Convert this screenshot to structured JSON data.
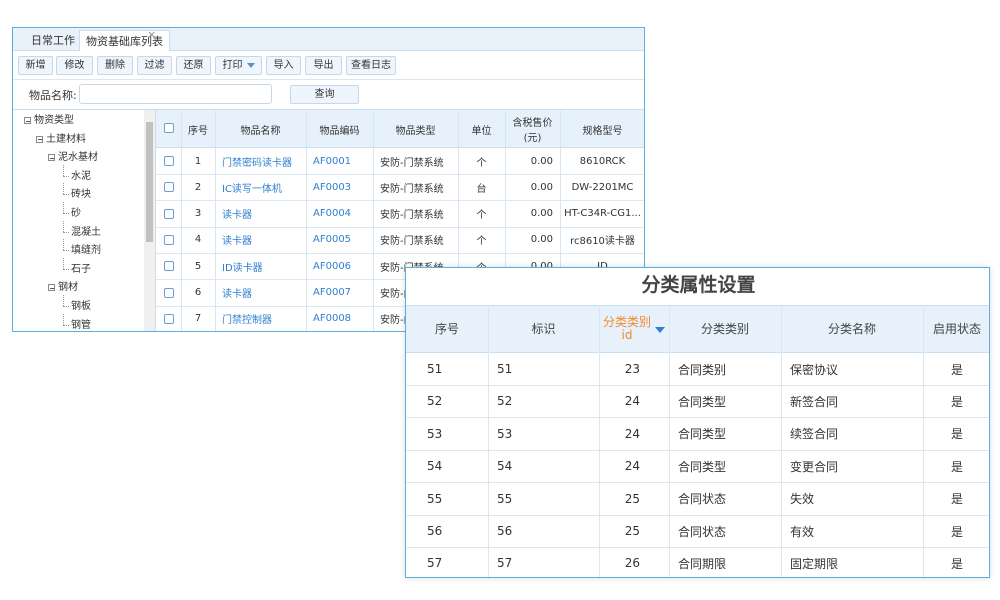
{
  "tabs": [
    "日常工作",
    "物资基础库列表"
  ],
  "tab_close": "×",
  "toolbar": [
    "新增",
    "修改",
    "删除",
    "过滤",
    "还原",
    "打印",
    "导入",
    "导出",
    "查看日志"
  ],
  "search": {
    "label": "物品名称:",
    "button": "查询"
  },
  "tree": [
    {
      "label": "物资类型",
      "children": [
        {
          "label": "土建材料",
          "children": [
            {
              "label": "泥水基材",
              "children": [
                {
                  "label": "水泥"
                },
                {
                  "label": "砖块"
                },
                {
                  "label": "砂"
                },
                {
                  "label": "混凝土"
                },
                {
                  "label": "填缝剂"
                },
                {
                  "label": "石子"
                }
              ]
            },
            {
              "label": "钢材",
              "children": [
                {
                  "label": "钢板"
                },
                {
                  "label": "钢管"
                }
              ]
            }
          ]
        }
      ]
    }
  ],
  "table": {
    "headers": [
      "序号",
      "物品名称",
      "物品编码",
      "物品类型",
      "单位",
      "含税售价(元)",
      "规格型号"
    ],
    "rows": [
      [
        "1",
        "门禁密码读卡器",
        "AF0001",
        "安防-门禁系统",
        "个",
        "0.00",
        "8610RCK"
      ],
      [
        "2",
        "IC读写一体机",
        "AF0003",
        "安防-门禁系统",
        "台",
        "0.00",
        "DW-2201MC"
      ],
      [
        "3",
        "读卡器",
        "AF0004",
        "安防-门禁系统",
        "个",
        "0.00",
        "HT-C34R-CG1..."
      ],
      [
        "4",
        "读卡器",
        "AF0005",
        "安防-门禁系统",
        "个",
        "0.00",
        "rc8610读卡器"
      ],
      [
        "5",
        "ID读卡器",
        "AF0006",
        "安防-门禁系统",
        "个",
        "0.00",
        "ID"
      ],
      [
        "6",
        "读卡器",
        "AF0007",
        "安防-门禁系统"
      ],
      [
        "7",
        "门禁控制器",
        "AF0008",
        "安防-门禁系统"
      ]
    ]
  },
  "dialog": {
    "title": "分类属性设置",
    "headers": [
      "序号",
      "标识",
      "分类类别id",
      "分类类别",
      "分类名称",
      "启用状态"
    ],
    "rows": [
      [
        "51",
        "51",
        "23",
        "合同类别",
        "保密协议",
        "是"
      ],
      [
        "52",
        "52",
        "24",
        "合同类型",
        "新签合同",
        "是"
      ],
      [
        "53",
        "53",
        "24",
        "合同类型",
        "续签合同",
        "是"
      ],
      [
        "54",
        "54",
        "24",
        "合同类型",
        "变更合同",
        "是"
      ],
      [
        "55",
        "55",
        "25",
        "合同状态",
        "失效",
        "是"
      ],
      [
        "56",
        "56",
        "25",
        "合同状态",
        "有效",
        "是"
      ],
      [
        "57",
        "57",
        "26",
        "合同期限",
        "固定期限",
        "是"
      ]
    ]
  }
}
